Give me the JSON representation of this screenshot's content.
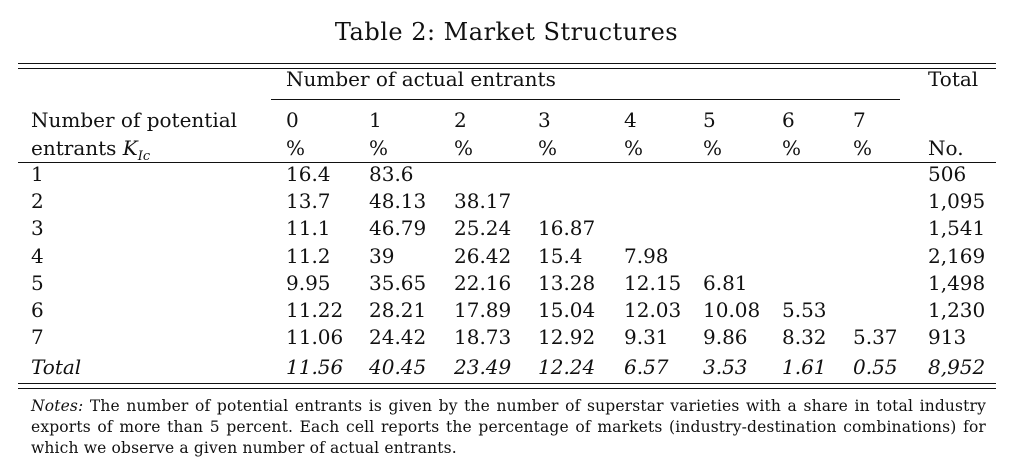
{
  "table": {
    "caption": "Table 2: Market Structures",
    "header": {
      "group_label": "Number of actual entrants",
      "total_label": "Total",
      "row_label_line1": "Number of potential",
      "row_label_line2_text": "entrants",
      "row_label_line2_math": "K",
      "row_label_line2_sub": "Ic",
      "columns": [
        "0",
        "1",
        "2",
        "3",
        "4",
        "5",
        "6",
        "7"
      ],
      "unit": "%",
      "total_unit": "No."
    },
    "rows": [
      {
        "k": "1",
        "cells": [
          "16.4",
          "83.6",
          "",
          "",
          "",
          "",
          "",
          ""
        ],
        "total": "506"
      },
      {
        "k": "2",
        "cells": [
          "13.7",
          "48.13",
          "38.17",
          "",
          "",
          "",
          "",
          ""
        ],
        "total": "1,095"
      },
      {
        "k": "3",
        "cells": [
          "11.1",
          "46.79",
          "25.24",
          "16.87",
          "",
          "",
          "",
          ""
        ],
        "total": "1,541"
      },
      {
        "k": "4",
        "cells": [
          "11.2",
          "39",
          "26.42",
          "15.4",
          "7.98",
          "",
          "",
          ""
        ],
        "total": "2,169"
      },
      {
        "k": "5",
        "cells": [
          "9.95",
          "35.65",
          "22.16",
          "13.28",
          "12.15",
          "6.81",
          "",
          ""
        ],
        "total": "1,498"
      },
      {
        "k": "6",
        "cells": [
          "11.22",
          "28.21",
          "17.89",
          "15.04",
          "12.03",
          "10.08",
          "5.53",
          ""
        ],
        "total": "1,230"
      },
      {
        "k": "7",
        "cells": [
          "11.06",
          "24.42",
          "18.73",
          "12.92",
          "9.31",
          "9.86",
          "8.32",
          "5.37"
        ],
        "total": "913"
      }
    ],
    "total_row": {
      "label": "Total",
      "cells": [
        "11.56",
        "40.45",
        "23.49",
        "12.24",
        "6.57",
        "3.53",
        "1.61",
        "0.55"
      ],
      "total": "8,952"
    },
    "notes": {
      "lead": "Notes:",
      "text": " The number of potential entrants is given by the number of superstar varieties with a share in total industry exports of more than 5 percent. Each cell reports the percentage of markets (industry-destination combinations) for which we observe a given number of actual entrants."
    }
  }
}
